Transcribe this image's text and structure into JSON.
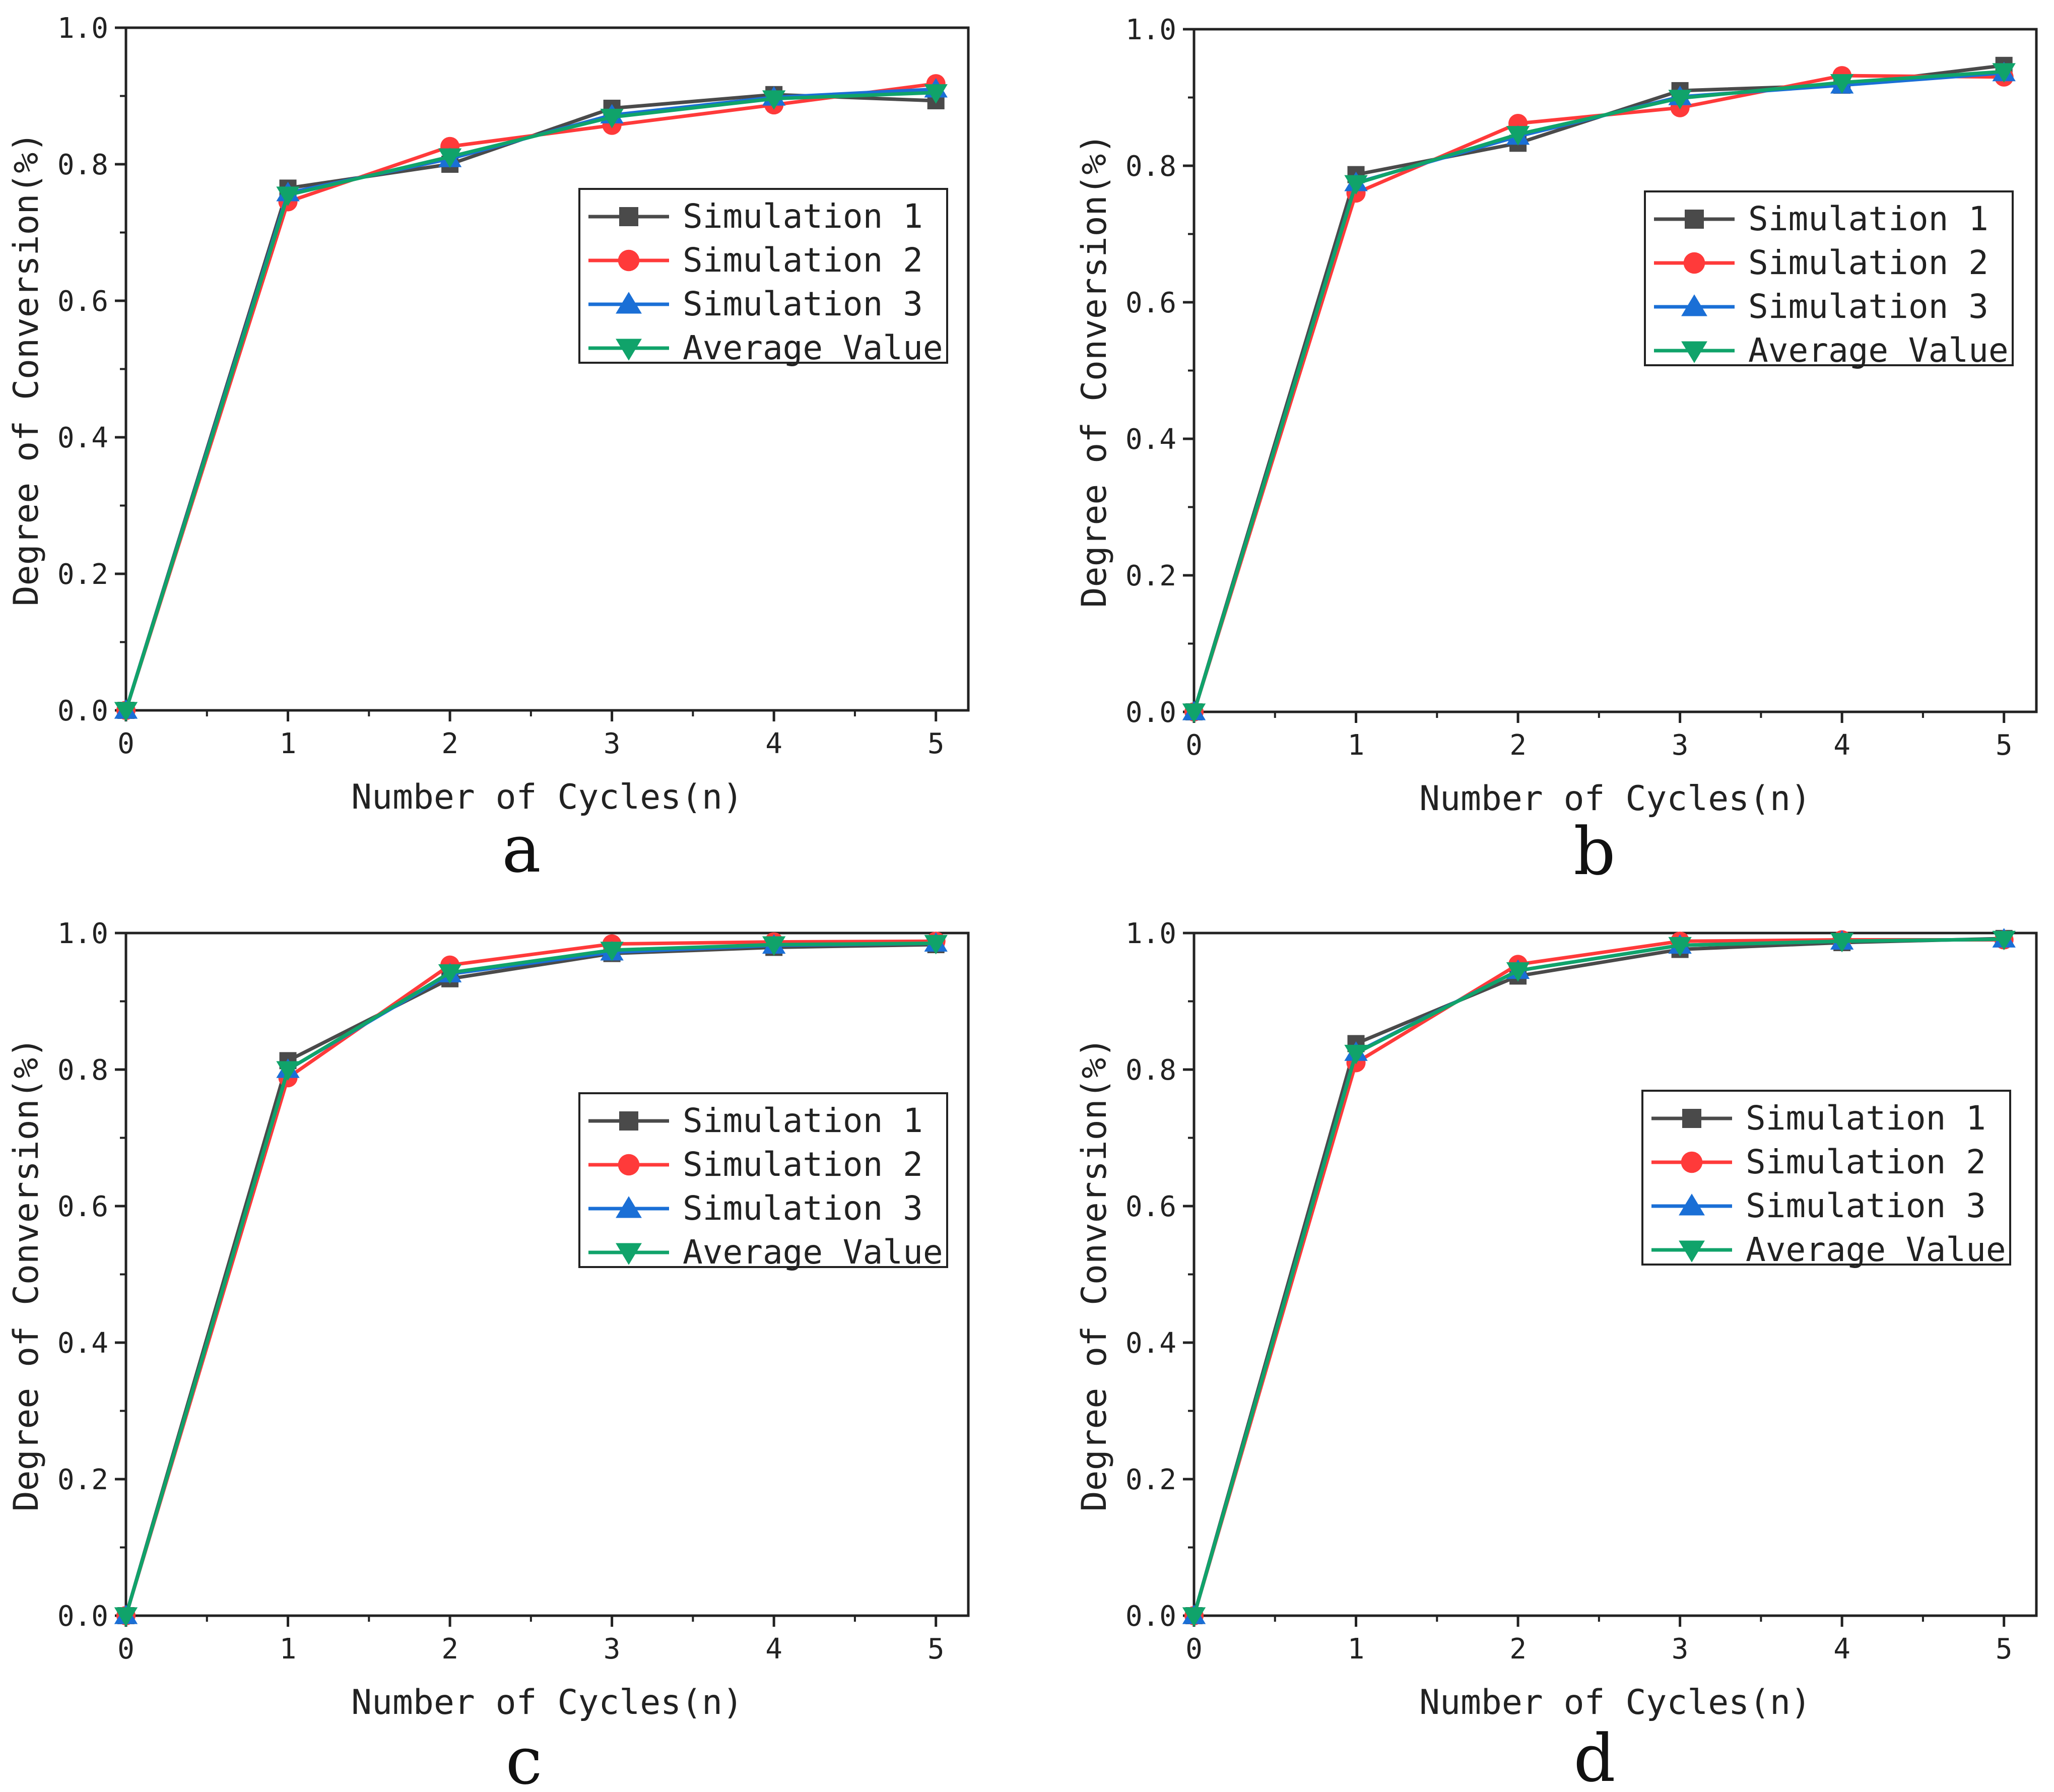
{
  "figure": {
    "panel_labels": [
      "a",
      "b",
      "c",
      "d"
    ]
  },
  "colors": {
    "Simulation 1": "#4a4a4a",
    "Simulation 2": "#ff3a3a",
    "Simulation 3": "#1a6fd6",
    "Average Value": "#10a36a"
  },
  "markers": {
    "Simulation 1": "square",
    "Simulation 2": "circle",
    "Simulation 3": "triangle-up",
    "Average Value": "triangle-down"
  },
  "chart_data": [
    {
      "type": "line",
      "panel": "a",
      "xlabel": "Number of Cycles(n)",
      "ylabel": "Degree of Conversion(%)",
      "xlim": [
        0,
        5.2
      ],
      "ylim": [
        0,
        1.0
      ],
      "x": [
        0,
        1,
        2,
        3,
        4,
        5
      ],
      "xticks": [
        "0",
        "1",
        "2",
        "3",
        "4",
        "5"
      ],
      "yticks": [
        "0.0",
        "0.2",
        "0.4",
        "0.6",
        "0.8",
        "1.0"
      ],
      "legend_position": "center-right",
      "series": [
        {
          "name": "Simulation 1",
          "values": [
            0,
            0.765,
            0.8,
            0.882,
            0.902,
            0.893
          ]
        },
        {
          "name": "Simulation 2",
          "values": [
            0,
            0.745,
            0.826,
            0.857,
            0.887,
            0.918
          ]
        },
        {
          "name": "Simulation 3",
          "values": [
            0,
            0.758,
            0.808,
            0.872,
            0.898,
            0.91
          ]
        },
        {
          "name": "Average Value",
          "values": [
            0,
            0.755,
            0.811,
            0.869,
            0.896,
            0.905
          ]
        }
      ]
    },
    {
      "type": "line",
      "panel": "b",
      "xlabel": "Number of Cycles(n)",
      "ylabel": "Degree of Conversion(%)",
      "xlim": [
        0,
        5.2
      ],
      "ylim": [
        0,
        1.0
      ],
      "x": [
        0,
        1,
        2,
        3,
        4,
        5
      ],
      "xticks": [
        "0",
        "1",
        "2",
        "3",
        "4",
        "5"
      ],
      "yticks": [
        "0.0",
        "0.2",
        "0.4",
        "0.6",
        "0.8",
        "1.0"
      ],
      "legend_position": "center-right",
      "series": [
        {
          "name": "Simulation 1",
          "values": [
            0,
            0.787,
            0.833,
            0.91,
            0.918,
            0.947
          ]
        },
        {
          "name": "Simulation 2",
          "values": [
            0,
            0.76,
            0.862,
            0.885,
            0.932,
            0.93
          ]
        },
        {
          "name": "Simulation 3",
          "values": [
            0,
            0.775,
            0.843,
            0.901,
            0.918,
            0.936
          ]
        },
        {
          "name": "Average Value",
          "values": [
            0,
            0.774,
            0.846,
            0.899,
            0.922,
            0.938
          ]
        }
      ]
    },
    {
      "type": "line",
      "panel": "c",
      "xlabel": "Number of Cycles(n)",
      "ylabel": "Degree of Conversion(%)",
      "xlim": [
        0,
        5.2
      ],
      "ylim": [
        0,
        1.0
      ],
      "x": [
        0,
        1,
        2,
        3,
        4,
        5
      ],
      "xticks": [
        "0",
        "1",
        "2",
        "3",
        "4",
        "5"
      ],
      "yticks": [
        "0.0",
        "0.2",
        "0.4",
        "0.6",
        "0.8",
        "1.0"
      ],
      "legend_position": "center-right",
      "series": [
        {
          "name": "Simulation 1",
          "values": [
            0,
            0.813,
            0.933,
            0.97,
            0.979,
            0.983
          ]
        },
        {
          "name": "Simulation 2",
          "values": [
            0,
            0.788,
            0.953,
            0.984,
            0.987,
            0.988
          ]
        },
        {
          "name": "Simulation 3",
          "values": [
            0,
            0.8,
            0.94,
            0.972,
            0.982,
            0.985
          ]
        },
        {
          "name": "Average Value",
          "values": [
            0,
            0.8,
            0.942,
            0.975,
            0.983,
            0.985
          ]
        }
      ]
    },
    {
      "type": "line",
      "panel": "d",
      "xlabel": "Number of Cycles(n)",
      "ylabel": "Degree of Conversion(%)",
      "xlim": [
        0,
        5.2
      ],
      "ylim": [
        0,
        1.0
      ],
      "x": [
        0,
        1,
        2,
        3,
        4,
        5
      ],
      "xticks": [
        "0",
        "1",
        "2",
        "3",
        "4",
        "5"
      ],
      "yticks": [
        "0.0",
        "0.2",
        "0.4",
        "0.6",
        "0.8",
        "1.0"
      ],
      "legend_position": "center-right",
      "series": [
        {
          "name": "Simulation 1",
          "values": [
            0,
            0.838,
            0.937,
            0.976,
            0.986,
            0.992
          ]
        },
        {
          "name": "Simulation 2",
          "values": [
            0,
            0.81,
            0.954,
            0.988,
            0.99,
            0.99
          ]
        },
        {
          "name": "Simulation 3",
          "values": [
            0,
            0.825,
            0.945,
            0.982,
            0.988,
            0.991
          ]
        },
        {
          "name": "Average Value",
          "values": [
            0,
            0.824,
            0.945,
            0.982,
            0.988,
            0.991
          ]
        }
      ]
    }
  ]
}
